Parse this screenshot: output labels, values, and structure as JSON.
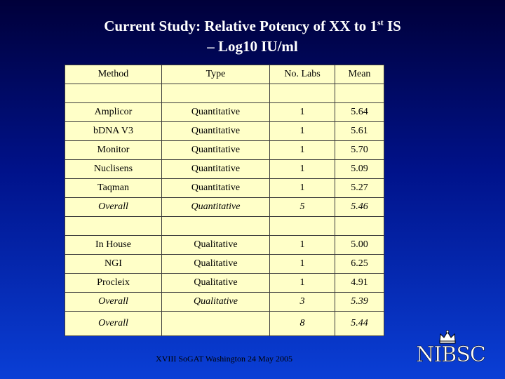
{
  "title": {
    "line1_prefix": "Current Study: Relative Potency of XX to 1",
    "line1_sup": "st",
    "line1_suffix": " IS",
    "line2": "– Log10 IU/ml"
  },
  "table": {
    "headers": [
      "Method",
      "Type",
      "No. Labs",
      "Mean"
    ],
    "rows": [
      {
        "method": "",
        "type": "",
        "labs": "",
        "mean": ""
      },
      {
        "method": "Amplicor",
        "type": "Quantitative",
        "labs": "1",
        "mean": "5.64"
      },
      {
        "method": "bDNA V3",
        "type": "Quantitative",
        "labs": "1",
        "mean": "5.61"
      },
      {
        "method": "Monitor",
        "type": "Quantitative",
        "labs": "1",
        "mean": "5.70"
      },
      {
        "method": "Nuclisens",
        "type": "Quantitative",
        "labs": "1",
        "mean": "5.09"
      },
      {
        "method": "Taqman",
        "type": "Quantitative",
        "labs": "1",
        "mean": "5.27"
      },
      {
        "method": "Overall",
        "type": "Quantitative",
        "labs": "5",
        "mean": "5.46"
      },
      {
        "method": "",
        "type": "",
        "labs": "",
        "mean": ""
      },
      {
        "method": "In House",
        "type": "Qualitative",
        "labs": "1",
        "mean": "5.00"
      },
      {
        "method": "NGI",
        "type": "Qualitative",
        "labs": "1",
        "mean": "6.25"
      },
      {
        "method": "Procleix",
        "type": "Qualitative",
        "labs": "1",
        "mean": "4.91"
      },
      {
        "method": "Overall",
        "type": "Qualitative",
        "labs": "3",
        "mean": "5.39"
      },
      {
        "method": "Overall",
        "type": "",
        "labs": "8",
        "mean": "5.44"
      }
    ]
  },
  "footer": "XVIII SoGAT Washington 24 May 2005",
  "logo": {
    "text": "NIBSC",
    "icon": "crown-icon"
  },
  "colors": {
    "table_bg": "#ffffc8",
    "title": "#ffffff",
    "bg_top": "#00003a",
    "bg_bottom": "#0a3fd6"
  }
}
